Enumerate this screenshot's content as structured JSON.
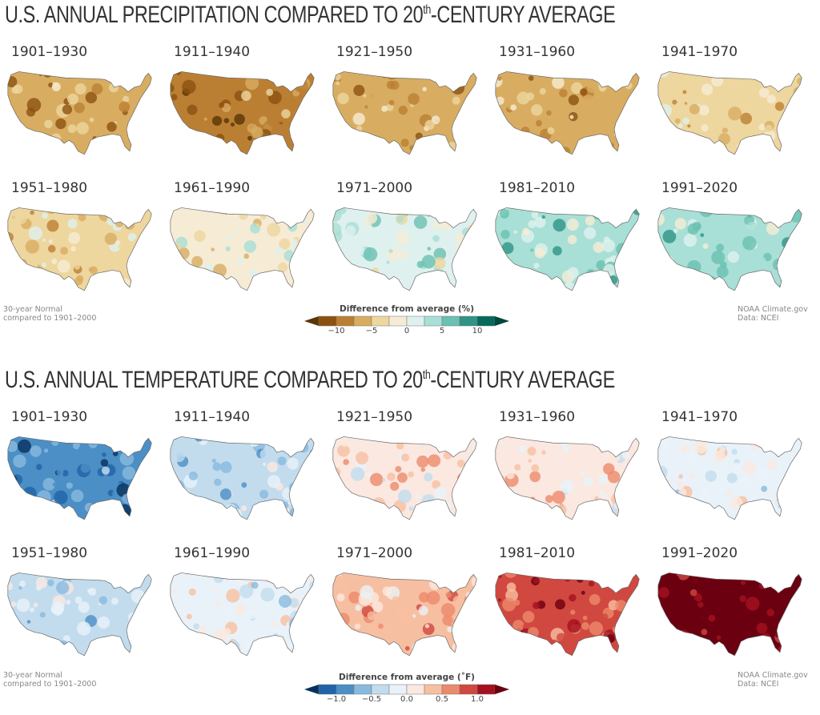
{
  "chart_data": [
    {
      "type": "heatmap",
      "title": "U.S. ANNUAL PRECIPITATION COMPARED TO 20th-CENTURY AVERAGE",
      "title_main": "U.S. ANNUAL PRECIPITATION COMPARED TO 20",
      "title_sup": "th",
      "title_end": "-CENTURY AVERAGE",
      "panels": [
        {
          "label": "1901–1930",
          "dominant": 3
        },
        {
          "label": "1911–1940",
          "dominant": 2
        },
        {
          "label": "1921–1950",
          "dominant": 3
        },
        {
          "label": "1931–1960",
          "dominant": 3
        },
        {
          "label": "1941–1970",
          "dominant": 4
        },
        {
          "label": "1951–1980",
          "dominant": 4
        },
        {
          "label": "1961–1990",
          "dominant": 5
        },
        {
          "label": "1971–2000",
          "dominant": 6
        },
        {
          "label": "1981–2010",
          "dominant": 7
        },
        {
          "label": "1991–2020",
          "dominant": 7
        }
      ],
      "legend": {
        "title": "Difference from average (%)",
        "colors": [
          "#5a3505",
          "#8c5110",
          "#bb7f33",
          "#d8ad62",
          "#eed69f",
          "#f6ecd5",
          "#dff1ee",
          "#a8dfd6",
          "#6ac0b2",
          "#2f9487",
          "#06695d",
          "#00483c"
        ],
        "ticks": [
          "−10",
          "−5",
          "0",
          "5",
          "10"
        ],
        "range": [
          -12.5,
          12.5
        ]
      },
      "note_left": [
        "30-year Normal",
        "compared to 1901–2000"
      ],
      "note_right": [
        "NOAA Climate.gov",
        "Data: NCEI"
      ]
    },
    {
      "type": "heatmap",
      "title": "U.S. ANNUAL TEMPERATURE COMPARED TO 20th-CENTURY AVERAGE",
      "title_main": "U.S. ANNUAL TEMPERATURE COMPARED TO 20",
      "title_sup": "th",
      "title_end": "-CENTURY AVERAGE",
      "panels": [
        {
          "label": "1901–1930",
          "dominant": 2
        },
        {
          "label": "1911–1940",
          "dominant": 4
        },
        {
          "label": "1921–1950",
          "dominant": 6
        },
        {
          "label": "1931–1960",
          "dominant": 6
        },
        {
          "label": "1941–1970",
          "dominant": 5
        },
        {
          "label": "1951–1980",
          "dominant": 4
        },
        {
          "label": "1961–1990",
          "dominant": 5
        },
        {
          "label": "1971–2000",
          "dominant": 7
        },
        {
          "label": "1981–2010",
          "dominant": 9
        },
        {
          "label": "1991–2020",
          "dominant": 11
        }
      ],
      "legend": {
        "title": "Difference from average (˚F)",
        "colors": [
          "#08305c",
          "#2063a7",
          "#4b8fc6",
          "#88bade",
          "#c2dcee",
          "#e9f2f9",
          "#fbe8e0",
          "#f7bfa1",
          "#ec8a6c",
          "#d0483f",
          "#a5101f",
          "#6a0010"
        ],
        "ticks": [
          "−1.0",
          "−0.5",
          "0.0",
          "0.5",
          "1.0"
        ],
        "range": [
          -1.25,
          1.25
        ]
      },
      "note_left": [
        "30-year Normal",
        "compared to 1901–2000"
      ],
      "note_right": [
        "NOAA Climate.gov",
        "Data: NCEI"
      ]
    }
  ]
}
